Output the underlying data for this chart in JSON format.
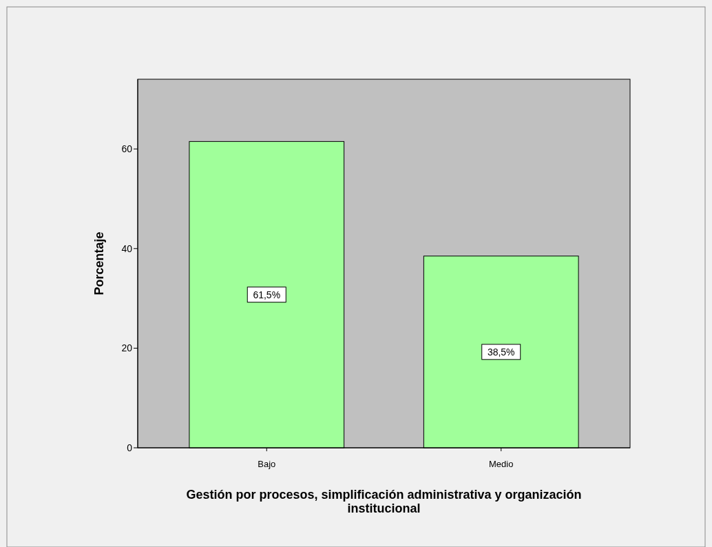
{
  "chart_data": {
    "type": "bar",
    "xlabel": "Gestión por procesos, simplificación administrativa y organización institucional",
    "ylabel": "Porcentaje",
    "categories": [
      "Bajo",
      "Medio"
    ],
    "values": [
      61.5,
      38.5
    ],
    "value_labels": [
      "61,5%",
      "38,5%"
    ],
    "color": "#a0ff9a",
    "ylim": [
      0,
      74
    ],
    "yticks": [
      0,
      20,
      40,
      60
    ],
    "grid": false
  }
}
